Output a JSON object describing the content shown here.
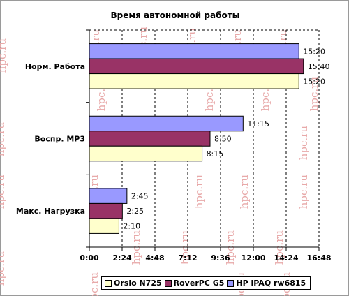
{
  "chart_data": {
    "type": "bar",
    "orientation": "horizontal",
    "title": "Время автономной работы",
    "categories": [
      "Норм. Работа",
      "Воспр. MP3",
      "Макс. Нагрузка"
    ],
    "series": [
      {
        "name": "HP iPAQ rw6815",
        "color": "#9999ff",
        "values": [
          15.333,
          11.25,
          2.75
        ],
        "labels": [
          "15:20",
          "11:15",
          "2:45"
        ]
      },
      {
        "name": "RoverPC G5",
        "color": "#993366",
        "values": [
          15.667,
          8.833,
          2.417
        ],
        "labels": [
          "15:40",
          "8:50",
          "2:25"
        ]
      },
      {
        "name": "Orsio N725",
        "color": "#ffffcc",
        "values": [
          15.333,
          8.25,
          2.167
        ],
        "labels": [
          "15:20",
          "8:15",
          "2:10"
        ]
      }
    ],
    "x_ticks": [
      0,
      2.4,
      4.8,
      7.2,
      9.6,
      12,
      14.4,
      16.8
    ],
    "x_tick_labels": [
      "0:00",
      "2:24",
      "4:48",
      "7:12",
      "9:36",
      "12:00",
      "14:24",
      "16:48"
    ],
    "xlim": [
      0,
      16.8
    ],
    "grid": "vertical dashed",
    "legend_position": "bottom",
    "legend_order": [
      "Orsio N725",
      "RoverPC G5",
      "HP iPAQ rw6815"
    ]
  },
  "watermark": "hpc.ru"
}
